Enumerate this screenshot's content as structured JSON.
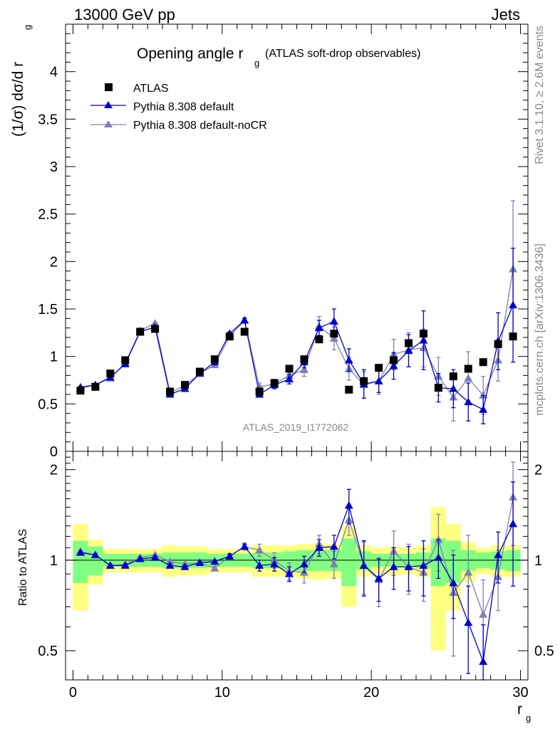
{
  "header": {
    "left": "13000 GeV pp",
    "right": "Jets",
    "side_top": "Rivet 3.1.10, ≥ 2.6M events",
    "side_bottom": "mcplots.cern.ch [arXiv:1306.3436]",
    "analysis_id": "ATLAS_2019_I1772062"
  },
  "chart_data": [
    {
      "type": "scatter",
      "panel": "main",
      "title_main": "Opening angle r",
      "title_sub": "g",
      "title_suffix": "(ATLAS soft-drop observables)",
      "ylabel": "(1/σ) dσ/d r",
      "ylabel_sub": "g",
      "xlim": [
        -0.5,
        30.5
      ],
      "ylim": [
        0,
        4.5
      ],
      "y_ticks": [
        0,
        0.5,
        1,
        1.5,
        2,
        2.5,
        3,
        3.5,
        4
      ],
      "y_tick_labels": [
        "0",
        "0.5",
        "1",
        "1.5",
        "2",
        "2.5",
        "3",
        "3.5",
        "4"
      ],
      "legend_position": "top-left",
      "x": [
        0.5,
        1.5,
        2.5,
        3.5,
        4.5,
        5.5,
        6.5,
        7.5,
        8.5,
        9.5,
        10.5,
        11.5,
        12.5,
        13.5,
        14.5,
        15.5,
        16.5,
        17.5,
        18.5,
        19.5,
        20.5,
        21.5,
        22.5,
        23.5,
        24.5,
        25.5,
        26.5,
        27.5,
        28.5,
        29.5
      ],
      "series": [
        {
          "name": "ATLAS",
          "color": "#000000",
          "marker": "square",
          "values": [
            0.64,
            0.68,
            0.82,
            0.96,
            1.26,
            1.29,
            0.63,
            0.7,
            0.84,
            0.97,
            1.21,
            1.26,
            0.63,
            0.72,
            0.87,
            0.97,
            1.18,
            1.24,
            0.65,
            0.74,
            0.88,
            0.96,
            1.14,
            1.24,
            0.67,
            0.79,
            0.87,
            0.94,
            1.13,
            1.21
          ]
        },
        {
          "name": "Pythia 8.308 default",
          "color": "#0000cc",
          "marker": "triangle",
          "values": [
            0.67,
            0.7,
            0.78,
            0.92,
            1.26,
            1.31,
            0.6,
            0.66,
            0.82,
            0.94,
            1.24,
            1.38,
            0.6,
            0.7,
            0.76,
            0.94,
            1.3,
            1.37,
            0.96,
            0.71,
            0.74,
            0.9,
            1.06,
            1.17,
            0.67,
            0.66,
            0.52,
            0.44,
            1.16,
            1.54
          ],
          "errors": [
            0.01,
            0.01,
            0.01,
            0.01,
            0.01,
            0.01,
            0.01,
            0.01,
            0.01,
            0.01,
            0.02,
            0.02,
            0.03,
            0.04,
            0.05,
            0.06,
            0.08,
            0.13,
            0.12,
            0.15,
            0.12,
            0.14,
            0.17,
            0.31,
            0.15,
            0.2,
            0.2,
            0.15,
            0.3,
            0.6
          ]
        },
        {
          "name": "Pythia 8.308 default-noCR",
          "color": "#7f7fb2",
          "marker": "triangle",
          "values": [
            0.68,
            0.7,
            0.77,
            0.93,
            1.27,
            1.35,
            0.62,
            0.69,
            0.82,
            0.91,
            1.21,
            1.38,
            0.68,
            0.71,
            0.8,
            0.86,
            1.32,
            1.19,
            0.87,
            0.7,
            0.74,
            1.02,
            1.07,
            1.09,
            0.79,
            0.57,
            0.77,
            0.59,
            0.96,
            1.92
          ],
          "errors": [
            0.01,
            0.01,
            0.01,
            0.01,
            0.01,
            0.01,
            0.01,
            0.01,
            0.01,
            0.01,
            0.02,
            0.03,
            0.04,
            0.05,
            0.06,
            0.07,
            0.1,
            0.12,
            0.12,
            0.14,
            0.14,
            0.16,
            0.18,
            0.2,
            0.2,
            0.25,
            0.28,
            0.2,
            0.22,
            0.72
          ]
        }
      ],
      "annotation": "ATLAS_2019_I1772062"
    },
    {
      "type": "scatter",
      "panel": "ratio",
      "ylabel": "Ratio to ATLAS",
      "xlabel": "r",
      "xlabel_sub": "g",
      "xlim": [
        -0.5,
        30.5
      ],
      "ylim": [
        0.4,
        2.3
      ],
      "log_y": true,
      "x_ticks": [
        0,
        10,
        20,
        30
      ],
      "x_tick_labels": [
        "0",
        "10",
        "20",
        "30"
      ],
      "y_ticks": [
        0.5,
        1,
        2
      ],
      "y_tick_labels": [
        "0.5",
        "1",
        "2"
      ],
      "x": [
        0.5,
        1.5,
        2.5,
        3.5,
        4.5,
        5.5,
        6.5,
        7.5,
        8.5,
        9.5,
        10.5,
        11.5,
        12.5,
        13.5,
        14.5,
        15.5,
        16.5,
        17.5,
        18.5,
        19.5,
        20.5,
        21.5,
        22.5,
        23.5,
        24.5,
        25.5,
        26.5,
        27.5,
        28.5,
        29.5
      ],
      "band_inner": [
        0.16,
        0.11,
        0.05,
        0.05,
        0.05,
        0.05,
        0.06,
        0.06,
        0.06,
        0.05,
        0.05,
        0.05,
        0.06,
        0.06,
        0.07,
        0.08,
        0.08,
        0.08,
        0.18,
        0.07,
        0.05,
        0.05,
        0.05,
        0.06,
        0.18,
        0.16,
        0.08,
        0.06,
        0.07,
        0.08
      ],
      "band_outer": [
        0.32,
        0.17,
        0.09,
        0.09,
        0.09,
        0.09,
        0.12,
        0.11,
        0.11,
        0.09,
        0.09,
        0.09,
        0.12,
        0.12,
        0.12,
        0.13,
        0.14,
        0.13,
        0.3,
        0.12,
        0.1,
        0.11,
        0.1,
        0.12,
        0.5,
        0.32,
        0.15,
        0.1,
        0.12,
        0.12
      ],
      "series": [
        {
          "name": "Pythia 8.308 default",
          "color": "#0000cc",
          "values": [
            1.06,
            1.04,
            0.96,
            0.96,
            1.01,
            1.02,
            0.96,
            0.95,
            0.98,
            0.99,
            1.03,
            1.11,
            0.96,
            0.97,
            0.9,
            0.97,
            1.1,
            1.11,
            1.52,
            0.96,
            0.87,
            0.95,
            0.95,
            0.96,
            1.02,
            0.84,
            0.62,
            0.46,
            1.04,
            1.32
          ],
          "errors": [
            0.01,
            0.01,
            0.01,
            0.01,
            0.01,
            0.01,
            0.01,
            0.01,
            0.01,
            0.01,
            0.02,
            0.02,
            0.04,
            0.05,
            0.05,
            0.06,
            0.07,
            0.1,
            0.2,
            0.2,
            0.14,
            0.15,
            0.16,
            0.2,
            0.15,
            0.2,
            0.2,
            0.15,
            0.2,
            0.5
          ]
        },
        {
          "name": "Pythia 8.308 default-noCR",
          "color": "#7f7fb2",
          "values": [
            1.07,
            1.04,
            0.96,
            0.97,
            1.02,
            1.04,
            0.99,
            0.97,
            0.98,
            0.94,
            1.03,
            1.11,
            1.08,
            1.0,
            0.92,
            0.91,
            1.13,
            0.97,
            1.36,
            0.96,
            0.86,
            1.07,
            0.95,
            0.91,
            1.17,
            0.78,
            0.91,
            0.66,
            0.88,
            1.62
          ],
          "errors": [
            0.01,
            0.01,
            0.01,
            0.01,
            0.01,
            0.01,
            0.01,
            0.01,
            0.01,
            0.01,
            0.02,
            0.03,
            0.05,
            0.06,
            0.06,
            0.07,
            0.08,
            0.1,
            0.15,
            0.19,
            0.16,
            0.18,
            0.18,
            0.18,
            0.25,
            0.3,
            0.3,
            0.2,
            0.2,
            0.5
          ]
        }
      ]
    }
  ],
  "colors": {
    "band_inner": "#80ff80",
    "band_outer": "#ffff80",
    "data": "#000000",
    "mc1": "#0000cc",
    "mc2": "#7f7fb2"
  }
}
